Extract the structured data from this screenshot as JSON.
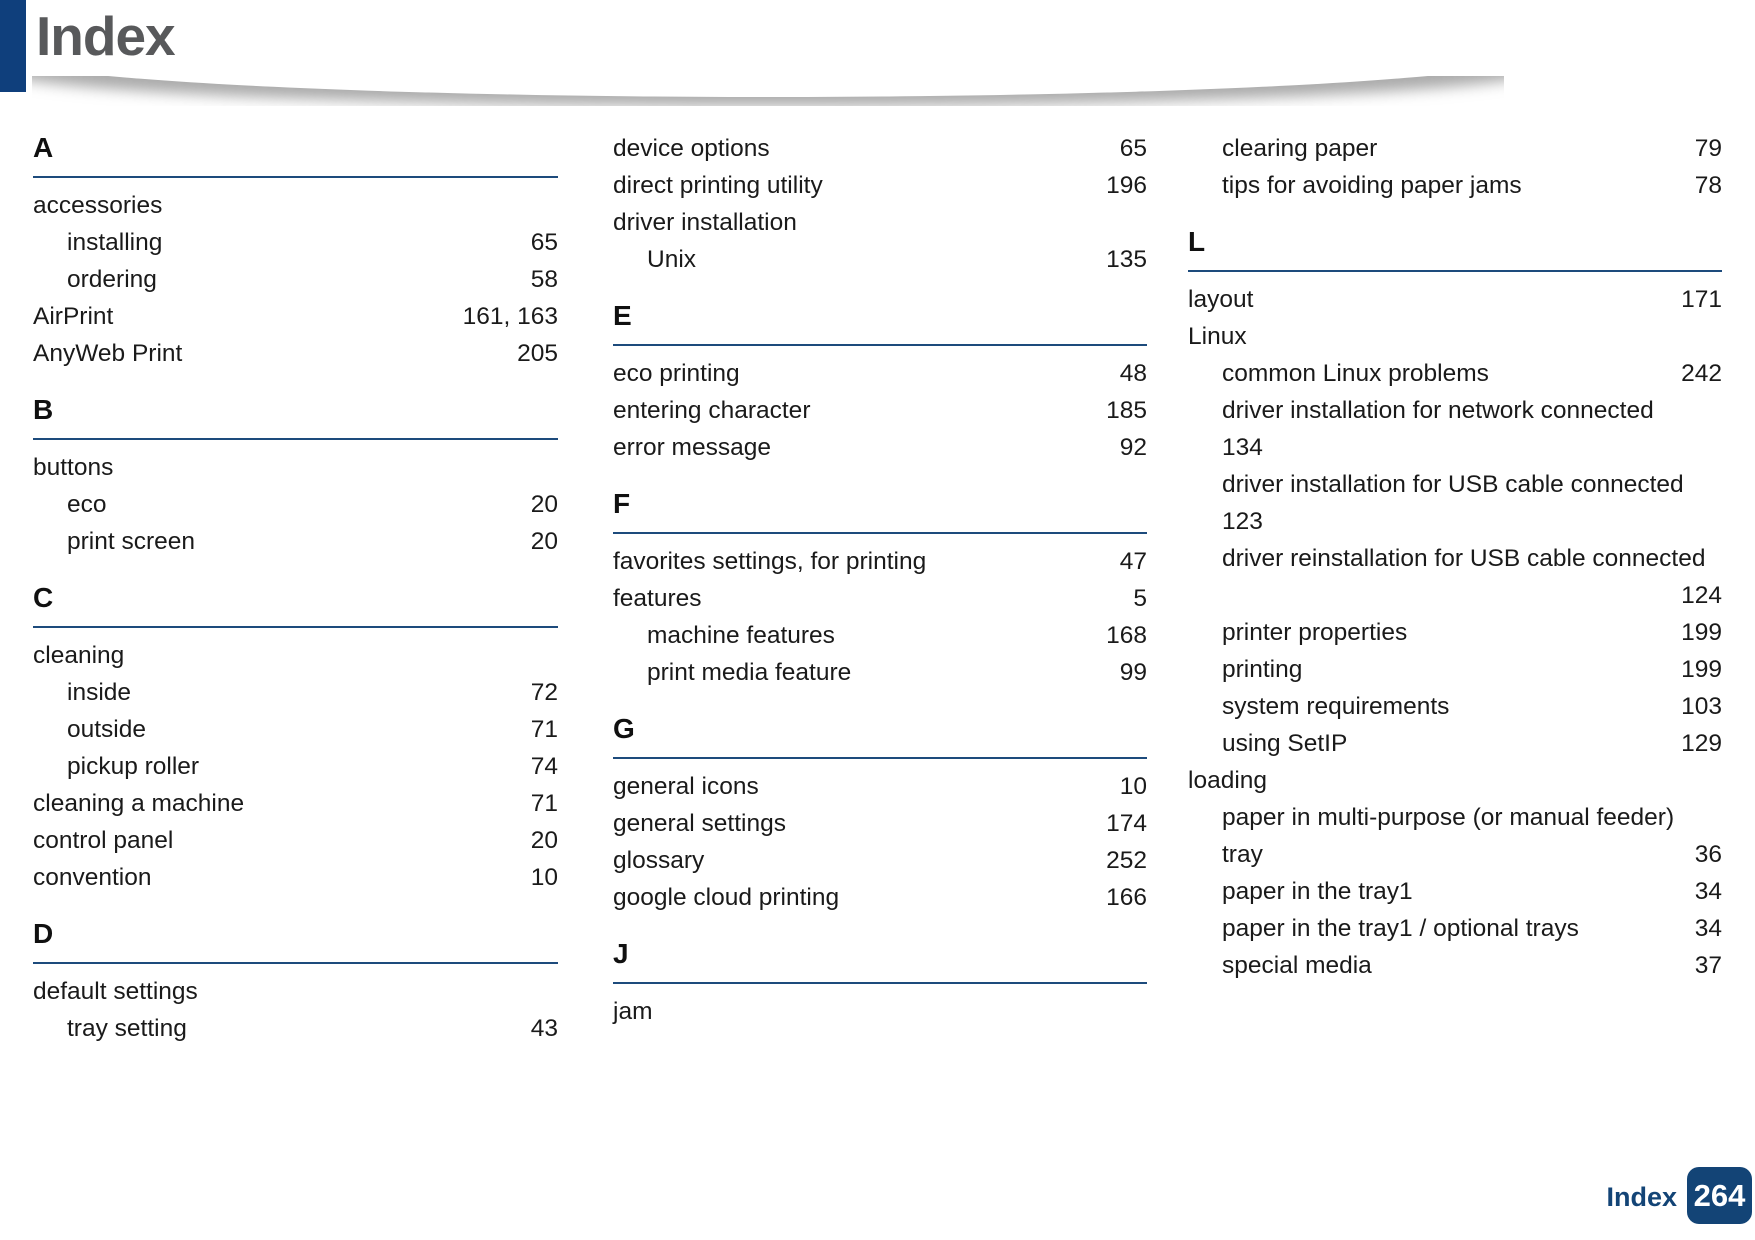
{
  "page": {
    "title": "Index"
  },
  "colors": {
    "accent_bar": "#0f3f7c",
    "section_rule": "#1d4b7c",
    "badge_background": "#134476",
    "title_text": "#58595b"
  },
  "footer": {
    "section_label": "Index",
    "page_number": "264"
  },
  "columns": [
    {
      "blocks": [
        {
          "letter": "A",
          "rows": [
            {
              "t": "accessories",
              "p": "",
              "i": 0
            },
            {
              "t": "installing",
              "p": "65",
              "i": 1
            },
            {
              "t": "ordering",
              "p": "58",
              "i": 1
            },
            {
              "t": "AirPrint",
              "p": "161, 163",
              "i": 0
            },
            {
              "t": "AnyWeb Print",
              "p": "205",
              "i": 0
            }
          ]
        },
        {
          "letter": "B",
          "rows": [
            {
              "t": "buttons",
              "p": "",
              "i": 0
            },
            {
              "t": "eco",
              "p": "20",
              "i": 1
            },
            {
              "t": "print screen",
              "p": "20",
              "i": 1
            }
          ]
        },
        {
          "letter": "C",
          "rows": [
            {
              "t": "cleaning",
              "p": "",
              "i": 0
            },
            {
              "t": "inside",
              "p": "72",
              "i": 1
            },
            {
              "t": "outside",
              "p": "71",
              "i": 1
            },
            {
              "t": "pickup roller",
              "p": "74",
              "i": 1
            },
            {
              "t": "cleaning a machine",
              "p": "71",
              "i": 0
            },
            {
              "t": "control panel",
              "p": "20",
              "i": 0
            },
            {
              "t": "convention",
              "p": "10",
              "i": 0
            }
          ]
        },
        {
          "letter": "D",
          "rows": [
            {
              "t": "default settings",
              "p": "",
              "i": 0
            },
            {
              "t": "tray setting",
              "p": "43",
              "i": 1
            }
          ]
        }
      ]
    },
    {
      "blocks": [
        {
          "letter": "",
          "rows": [
            {
              "t": "device options",
              "p": "65",
              "i": 0
            },
            {
              "t": "direct printing utility",
              "p": "196",
              "i": 0
            },
            {
              "t": "driver installation",
              "p": "",
              "i": 0
            },
            {
              "t": "Unix",
              "p": "135",
              "i": 1
            }
          ]
        },
        {
          "letter": "E",
          "rows": [
            {
              "t": "eco printing",
              "p": "48",
              "i": 0
            },
            {
              "t": "entering character",
              "p": "185",
              "i": 0
            },
            {
              "t": "error message",
              "p": "92",
              "i": 0
            }
          ]
        },
        {
          "letter": "F",
          "rows": [
            {
              "t": "favorites settings, for printing",
              "p": "47",
              "i": 0
            },
            {
              "t": "features",
              "p": "5",
              "i": 0
            },
            {
              "t": "machine features",
              "p": "168",
              "i": 1
            },
            {
              "t": "print media feature",
              "p": "99",
              "i": 1
            }
          ]
        },
        {
          "letter": "G",
          "rows": [
            {
              "t": "general icons",
              "p": "10",
              "i": 0
            },
            {
              "t": "general settings",
              "p": "174",
              "i": 0
            },
            {
              "t": "glossary",
              "p": "252",
              "i": 0
            },
            {
              "t": "google cloud printing",
              "p": "166",
              "i": 0
            }
          ]
        },
        {
          "letter": "J",
          "rows": [
            {
              "t": "jam",
              "p": "",
              "i": 0
            }
          ]
        }
      ]
    },
    {
      "blocks": [
        {
          "letter": "",
          "rows": [
            {
              "t": "clearing paper",
              "p": "79",
              "i": 1
            },
            {
              "t": "tips for avoiding paper jams",
              "p": "78",
              "i": 1
            }
          ]
        },
        {
          "letter": "L",
          "rows": [
            {
              "t": "layout",
              "p": "171",
              "i": 0
            },
            {
              "t": "Linux",
              "p": "",
              "i": 0
            },
            {
              "t": "common Linux problems",
              "p": "242",
              "i": 1
            },
            {
              "t": "driver installation for network connected",
              "p": "",
              "i": 1
            },
            {
              "t": "134",
              "p": "",
              "i": 1
            },
            {
              "t": "driver installation for USB cable connected",
              "p": "",
              "i": 1
            },
            {
              "t": "123",
              "p": "",
              "i": 1
            },
            {
              "t": "driver reinstallation for USB cable connected",
              "p": "",
              "i": 1
            },
            {
              "t": "",
              "p": "124",
              "i": 1
            },
            {
              "t": "printer properties",
              "p": "199",
              "i": 1
            },
            {
              "t": "printing",
              "p": "199",
              "i": 1
            },
            {
              "t": "system requirements",
              "p": "103",
              "i": 1
            },
            {
              "t": "using SetIP",
              "p": "129",
              "i": 1
            },
            {
              "t": "loading",
              "p": "",
              "i": 0
            },
            {
              "t": "paper in multi-purpose (or manual feeder)",
              "p": "",
              "i": 1
            },
            {
              "t": "tray",
              "p": "36",
              "i": 1
            },
            {
              "t": "paper in the tray1",
              "p": "34",
              "i": 1
            },
            {
              "t": "paper in the tray1 / optional trays",
              "p": "34",
              "i": 1
            },
            {
              "t": "special media",
              "p": "37",
              "i": 1
            }
          ]
        }
      ]
    }
  ]
}
